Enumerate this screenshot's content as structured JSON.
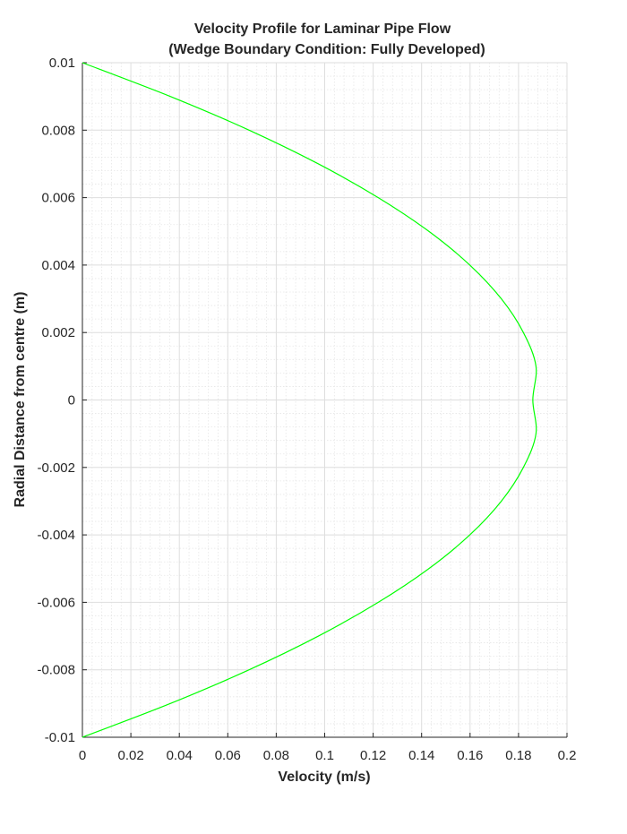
{
  "chart_data": {
    "type": "line",
    "title": [
      "Velocity Profile for Laminar Pipe Flow",
      "(Wedge Boundary Condition: Fully Developed)"
    ],
    "xlabel": "Velocity (m/s)",
    "ylabel": "Radial Distance from centre (m)",
    "xlim": [
      0,
      0.2
    ],
    "ylim": [
      -0.01,
      0.01
    ],
    "xticks": [
      0,
      0.02,
      0.04,
      0.06,
      0.08,
      0.1,
      0.12,
      0.14,
      0.16,
      0.18,
      0.2
    ],
    "xtick_labels": [
      "0",
      "0.02",
      "0.04",
      "0.06",
      "0.08",
      "0.1",
      "0.12",
      "0.14",
      "0.16",
      "0.18",
      "0.2"
    ],
    "yticks": [
      0.01,
      0.008,
      0.006,
      0.004,
      0.002,
      0,
      -0.002,
      -0.004,
      -0.006,
      -0.008,
      -0.01
    ],
    "ytick_labels": [
      "0.01",
      "0.008",
      "0.006",
      "0.004",
      "0.002",
      "0",
      "-0.002",
      "-0.004",
      "-0.006",
      "-0.008",
      "-0.01"
    ],
    "grid": true,
    "minor_grid": true,
    "line_color": "#00ff00",
    "series": [
      {
        "x": [
          0,
          0.0363,
          0.0688,
          0.0974,
          0.1221,
          0.143,
          0.1599,
          0.1729,
          0.182,
          0.1872,
          0.1859,
          0.1859,
          0.1872,
          0.182,
          0.1729,
          0.1599,
          0.143,
          0.1221,
          0.0974,
          0.0688,
          0.0363,
          0
        ],
        "y": [
          0.01,
          0.009,
          0.008,
          0.007,
          0.006,
          0.005,
          0.004,
          0.003,
          0.002,
          0.001,
          0.0,
          0.0,
          -0.001,
          -0.002,
          -0.003,
          -0.004,
          -0.005,
          -0.006,
          -0.007,
          -0.008,
          -0.009,
          -0.01
        ]
      }
    ]
  }
}
